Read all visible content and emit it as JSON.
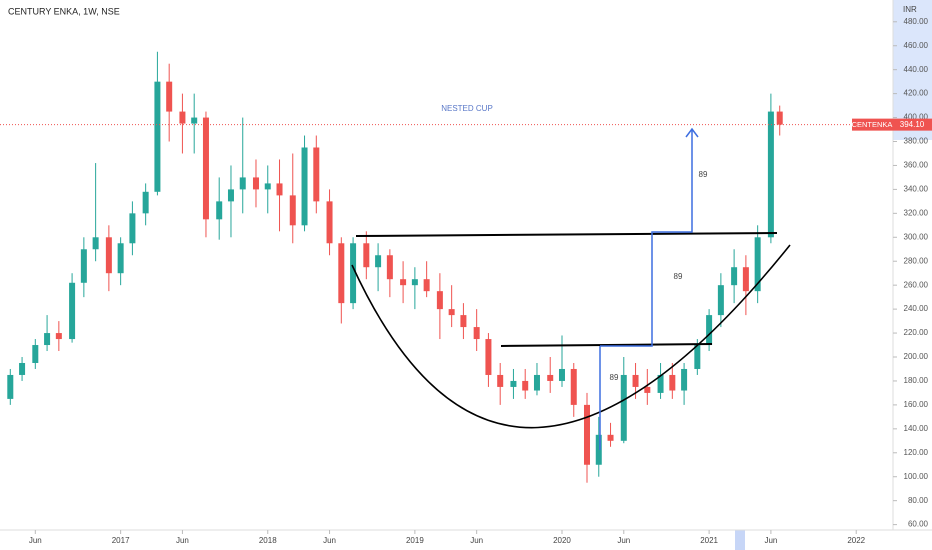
{
  "chart_data": {
    "type": "candlestick",
    "title": "CENTURY ENKA, 1W, NSE",
    "currency": "INR",
    "symbol": "CENTENKA",
    "annotations": [
      "NESTED CUP",
      "89",
      "89",
      "89"
    ],
    "x": [
      2016.25,
      2016.33,
      2016.42,
      2016.5,
      2016.58,
      2016.67,
      2016.75,
      2016.83,
      2016.92,
      2017.0,
      2017.08,
      2017.17,
      2017.25,
      2017.33,
      2017.42,
      2017.5,
      2017.58,
      2017.67,
      2017.75,
      2017.83,
      2017.92,
      2018.0,
      2018.08,
      2018.17,
      2018.25,
      2018.33,
      2018.42,
      2018.5,
      2018.58,
      2018.67,
      2018.75,
      2018.83,
      2018.92,
      2019.0,
      2019.08,
      2019.17,
      2019.25,
      2019.33,
      2019.42,
      2019.5,
      2019.58,
      2019.67,
      2019.75,
      2019.83,
      2019.92,
      2020.0,
      2020.08,
      2020.17,
      2020.25,
      2020.33,
      2020.42,
      2020.5,
      2020.58,
      2020.67,
      2020.75,
      2020.83,
      2020.92,
      2021.0,
      2021.08,
      2021.17,
      2021.25,
      2021.33,
      2021.42,
      2021.48
    ],
    "open": [
      165,
      185,
      195,
      210,
      220,
      215,
      262,
      290,
      300,
      270,
      295,
      320,
      338,
      430,
      405,
      395,
      400,
      315,
      330,
      340,
      350,
      340,
      345,
      335,
      310,
      375,
      330,
      295,
      245,
      295,
      275,
      285,
      265,
      260,
      265,
      255,
      240,
      235,
      225,
      215,
      185,
      175,
      180,
      172,
      185,
      180,
      190,
      160,
      110,
      135,
      130,
      185,
      175,
      170,
      185,
      172,
      190,
      210,
      235,
      260,
      275,
      255,
      300,
      405
    ],
    "high": [
      190,
      200,
      215,
      235,
      230,
      270,
      300,
      362,
      310,
      300,
      330,
      345,
      455,
      445,
      420,
      420,
      405,
      350,
      360,
      400,
      365,
      360,
      365,
      370,
      385,
      385,
      340,
      300,
      300,
      305,
      295,
      290,
      280,
      275,
      280,
      270,
      260,
      245,
      240,
      220,
      195,
      190,
      190,
      195,
      200,
      218,
      195,
      170,
      150,
      145,
      200,
      195,
      190,
      195,
      195,
      195,
      215,
      240,
      270,
      290,
      285,
      310,
      420,
      410
    ],
    "low": [
      160,
      180,
      190,
      205,
      205,
      212,
      250,
      280,
      255,
      260,
      285,
      310,
      335,
      380,
      370,
      370,
      300,
      298,
      300,
      320,
      325,
      320,
      305,
      295,
      305,
      320,
      285,
      228,
      240,
      265,
      255,
      250,
      245,
      240,
      250,
      215,
      225,
      215,
      205,
      175,
      160,
      165,
      165,
      168,
      170,
      175,
      150,
      95,
      100,
      125,
      128,
      165,
      160,
      165,
      165,
      160,
      185,
      205,
      225,
      245,
      235,
      245,
      295,
      385
    ],
    "close": [
      185,
      195,
      210,
      220,
      215,
      262,
      290,
      300,
      270,
      295,
      320,
      338,
      430,
      405,
      395,
      400,
      315,
      330,
      340,
      350,
      340,
      345,
      335,
      310,
      375,
      330,
      295,
      245,
      295,
      275,
      285,
      265,
      260,
      265,
      255,
      240,
      235,
      225,
      215,
      185,
      175,
      180,
      172,
      185,
      180,
      190,
      160,
      110,
      135,
      130,
      185,
      175,
      170,
      185,
      172,
      190,
      210,
      235,
      260,
      275,
      255,
      300,
      405,
      394.1
    ],
    "up_color": "#26a69a",
    "down_color": "#ef5350",
    "last_price": {
      "value": 394.1,
      "label": "394.10"
    },
    "xlim": [
      2016.18,
      2022.25
    ],
    "ylim": [
      55.5,
      498.2
    ],
    "xticks": [
      {
        "value": 2016.42,
        "label": "Jun"
      },
      2017,
      {
        "value": 2017.42,
        "label": "Jun"
      },
      2018,
      {
        "value": 2018.42,
        "label": "Jun"
      },
      2019,
      {
        "value": 2019.42,
        "label": "Jun"
      },
      2020,
      {
        "value": 2020.42,
        "label": "Jun"
      },
      2021,
      {
        "value": 2021.42,
        "label": "Jun"
      },
      2022
    ],
    "yticks": [
      {
        "value": 60,
        "label": "60.00"
      },
      {
        "value": 80,
        "label": "80.00"
      },
      {
        "value": 100,
        "label": "100.00"
      },
      {
        "value": 120,
        "label": "120.00"
      },
      {
        "value": 140,
        "label": "140.00"
      },
      {
        "value": 160,
        "label": "160.00"
      },
      {
        "value": 180,
        "label": "180.00"
      },
      {
        "value": 200,
        "label": "200.00"
      },
      {
        "value": 220,
        "label": "220.00"
      },
      {
        "value": 240,
        "label": "240.00"
      },
      {
        "value": 260,
        "label": "260.00"
      },
      {
        "value": 280,
        "label": "280.00"
      },
      {
        "value": 300,
        "label": "300.00"
      },
      {
        "value": 320,
        "label": "320.00"
      },
      {
        "value": 340,
        "label": "340.00"
      },
      {
        "value": 360,
        "label": "360.00"
      },
      {
        "value": 380,
        "label": "380.00"
      },
      {
        "value": 400,
        "label": "400.00"
      },
      {
        "value": 420,
        "label": "420.00"
      },
      {
        "value": 440,
        "label": "440.00"
      },
      {
        "value": 460,
        "label": "460.00"
      },
      {
        "value": 480,
        "label": "480.00"
      }
    ]
  }
}
